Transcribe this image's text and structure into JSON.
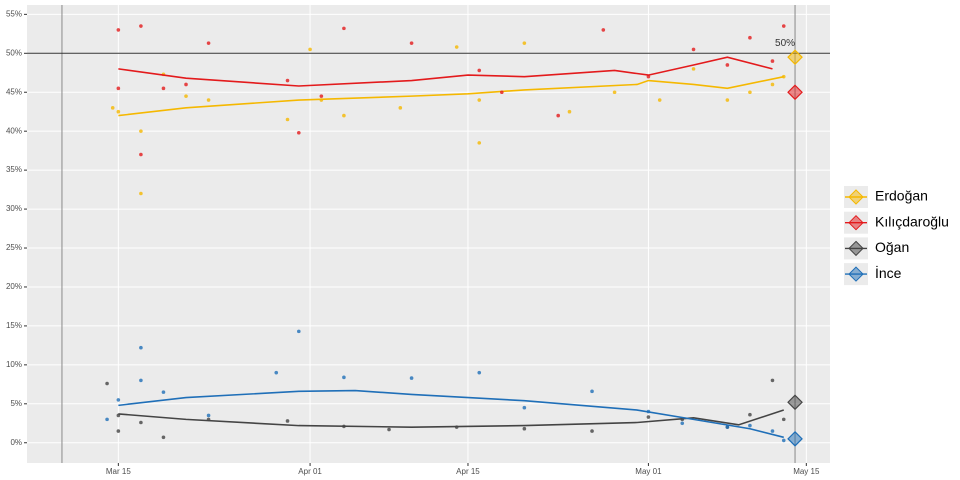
{
  "chart_data": {
    "type": "scatter",
    "xlim": [
      65.9,
      137.1
    ],
    "ylim": [
      -2.6,
      56.2
    ],
    "xticks": [
      {
        "value": 74,
        "label": "Mar 15"
      },
      {
        "value": 91,
        "label": "Apr 01"
      },
      {
        "value": 105,
        "label": "Apr 15"
      },
      {
        "value": 121,
        "label": "May 01"
      },
      {
        "value": 135,
        "label": "May 15"
      }
    ],
    "yticks": [
      {
        "value": 0,
        "label": "0%"
      },
      {
        "value": 5,
        "label": "5%"
      },
      {
        "value": 10,
        "label": "10%"
      },
      {
        "value": 15,
        "label": "15%"
      },
      {
        "value": 20,
        "label": "20%"
      },
      {
        "value": 25,
        "label": "25%"
      },
      {
        "value": 30,
        "label": "30%"
      },
      {
        "value": 35,
        "label": "35%"
      },
      {
        "value": 40,
        "label": "40%"
      },
      {
        "value": 45,
        "label": "45%"
      },
      {
        "value": 50,
        "label": "50%"
      },
      {
        "value": 55,
        "label": "55%"
      }
    ],
    "grid": true,
    "hline": {
      "value": 50,
      "label": "50%"
    },
    "vlines": [
      69,
      134
    ],
    "result_x": 134,
    "legend": "right",
    "series": [
      {
        "name": "Erdoğan",
        "color": "#f5b800",
        "x": [
          73.5,
          74,
          76,
          76,
          78,
          80,
          82,
          89,
          91,
          92,
          94,
          99,
          104,
          106,
          106,
          110,
          114,
          118,
          122,
          125,
          128,
          130,
          132,
          133
        ],
        "values": [
          43,
          42.5,
          32,
          40,
          47.3,
          44.5,
          44,
          41.5,
          50.5,
          44,
          42,
          43,
          50.8,
          38.5,
          44,
          51.3,
          42.5,
          45,
          44,
          48,
          44,
          45,
          46,
          47
        ],
        "trend_x": [
          74,
          80,
          90,
          100,
          105,
          110,
          120,
          121,
          125,
          128,
          133
        ],
        "trend": [
          42.0,
          43.0,
          44.0,
          44.5,
          44.8,
          45.3,
          46.0,
          46.5,
          46.0,
          45.5,
          47.0
        ],
        "result": 49.5
      },
      {
        "name": "Kılıçdaroğlu",
        "color": "#e31a1c",
        "x": [
          74,
          74,
          76,
          76,
          78,
          80,
          82,
          89,
          90,
          92,
          94,
          100,
          106,
          108,
          113,
          117,
          121,
          125,
          128,
          130,
          132,
          133
        ],
        "values": [
          53,
          45.5,
          53.5,
          37,
          45.5,
          46,
          51.3,
          46.5,
          39.8,
          44.5,
          53.2,
          51.3,
          47.8,
          45,
          42,
          53,
          47,
          50.5,
          48.5,
          52,
          49,
          53.5
        ],
        "trend_x": [
          74,
          80,
          90,
          100,
          105,
          110,
          118,
          121,
          125,
          128,
          132
        ],
        "trend": [
          48.0,
          46.8,
          45.8,
          46.5,
          47.2,
          47.0,
          47.8,
          47.2,
          48.5,
          49.5,
          48.0
        ],
        "result": 45
      },
      {
        "name": "Oğan",
        "color": "#444444",
        "x": [
          73,
          74,
          74,
          76,
          78,
          82,
          89,
          94,
          98,
          104,
          110,
          116,
          121,
          124,
          128,
          130,
          132,
          133
        ],
        "values": [
          7.6,
          3.5,
          1.5,
          2.6,
          0.7,
          3,
          2.8,
          2.1,
          1.7,
          2,
          1.8,
          1.5,
          3.3,
          3,
          2,
          3.6,
          8,
          3
        ],
        "trend_x": [
          74,
          80,
          90,
          100,
          110,
          120,
          125,
          129,
          133
        ],
        "trend": [
          3.7,
          3.0,
          2.2,
          2.0,
          2.2,
          2.6,
          3.2,
          2.3,
          4.2
        ],
        "result": 5.2
      },
      {
        "name": "İnce",
        "color": "#1f6fb8",
        "x": [
          73,
          74,
          76,
          76,
          78,
          82,
          88,
          90,
          94,
          100,
          106,
          110,
          116,
          121,
          124,
          128,
          130,
          132,
          133
        ],
        "values": [
          3,
          5.5,
          8,
          12.2,
          6.5,
          3.5,
          9,
          14.3,
          8.4,
          8.3,
          9,
          4.5,
          6.6,
          4,
          2.5,
          2,
          2.2,
          1.5,
          0.3
        ],
        "trend_x": [
          74,
          80,
          90,
          95,
          100,
          110,
          120,
          125,
          130,
          133
        ],
        "trend": [
          4.8,
          5.8,
          6.6,
          6.7,
          6.2,
          5.4,
          4.2,
          3.0,
          1.8,
          0.7
        ],
        "result": 0.5
      }
    ]
  }
}
